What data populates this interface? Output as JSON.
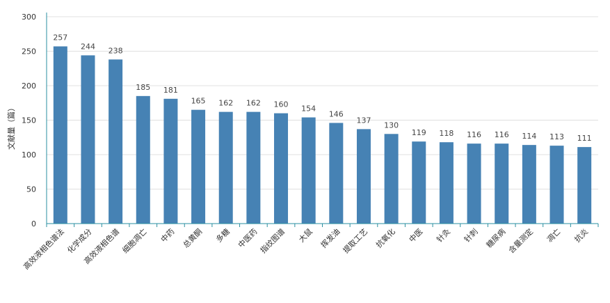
{
  "chart_data": {
    "type": "bar",
    "title": "",
    "xlabel": "",
    "ylabel": "文献量（篇）",
    "ylim": [
      0,
      300
    ],
    "yticks": [
      0,
      50,
      100,
      150,
      200,
      250,
      300
    ],
    "grid": true,
    "bar_color": "#4682b4",
    "categories": [
      "高效液相色谱法",
      "化学成分",
      "高效液相色谱",
      "细胞凋亡",
      "中药",
      "总黄酮",
      "多糖",
      "中医药",
      "指纹图谱",
      "大鼠",
      "挥发油",
      "提取工艺",
      "抗氧化",
      "中医",
      "针灸",
      "针刺",
      "糖尿病",
      "含量测定",
      "凋亡",
      "抗炎"
    ],
    "values": [
      257,
      244,
      238,
      185,
      181,
      165,
      162,
      162,
      160,
      154,
      146,
      137,
      130,
      119,
      118,
      116,
      116,
      114,
      113,
      111
    ]
  }
}
